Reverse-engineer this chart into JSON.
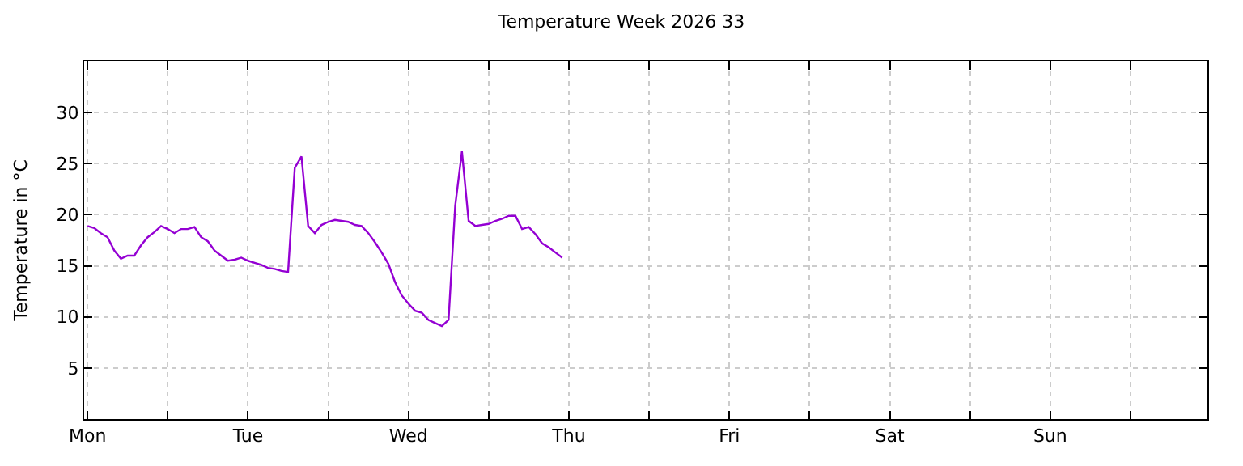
{
  "chart_data": {
    "type": "line",
    "title": "Temperature Week 2026 33",
    "ylabel": "Temperature in °C",
    "categories": [
      "Mon",
      null,
      null,
      null,
      null,
      null,
      null,
      null,
      null,
      null,
      null,
      null,
      null,
      null,
      null,
      null,
      null,
      null,
      null,
      null,
      null,
      null,
      null,
      null,
      "Tue",
      null,
      null,
      null,
      null,
      null,
      null,
      null,
      null,
      null,
      null,
      null,
      null,
      null,
      null,
      null,
      null,
      null,
      null,
      null,
      null,
      null,
      null,
      null,
      "Wed",
      null,
      null,
      null,
      null,
      null,
      null,
      null,
      null,
      null,
      null,
      null,
      null,
      null,
      null,
      null,
      null,
      null,
      null,
      null,
      null,
      null,
      null,
      null,
      "Thu",
      null,
      null,
      null,
      null,
      null,
      null,
      null,
      null,
      null,
      null,
      null,
      null,
      null,
      null,
      null,
      null,
      null,
      null,
      null,
      null,
      null,
      null,
      null,
      "Fri",
      null,
      null,
      null,
      null,
      null,
      null,
      null,
      null,
      null,
      null,
      null,
      null,
      null,
      null,
      null,
      null,
      null,
      null,
      null,
      null,
      null,
      null,
      null,
      "Sat",
      null,
      null,
      null,
      null,
      null,
      null,
      null,
      null,
      null,
      null,
      null,
      null,
      null,
      null,
      null,
      null,
      null,
      null,
      null,
      null,
      null,
      null,
      null,
      "Sun",
      null,
      null,
      null,
      null,
      null,
      null,
      null,
      null,
      null,
      null,
      null,
      null,
      null,
      null,
      null,
      null,
      null,
      null,
      null,
      null,
      null,
      null,
      null
    ],
    "series": [
      {
        "color": "#9400d3",
        "values": [
          18.9,
          18.7,
          18.2,
          17.8,
          16.5,
          15.7,
          16.0,
          16.0,
          17.0,
          17.8,
          18.3,
          18.9,
          18.6,
          18.2,
          18.6,
          18.6,
          18.8,
          17.8,
          17.4,
          16.5,
          16.0,
          15.5,
          15.6,
          15.8,
          15.5,
          15.3,
          15.1,
          14.8,
          14.7,
          14.5,
          14.4,
          24.6,
          25.7,
          18.9,
          18.2,
          19.0,
          19.3,
          19.5,
          19.4,
          19.3,
          19.0,
          18.9,
          18.2,
          17.3,
          16.3,
          15.2,
          13.4,
          12.1,
          11.3,
          10.6,
          10.4,
          9.7,
          9.4,
          9.1,
          9.7,
          20.9,
          26.2,
          19.4,
          18.9,
          19.0,
          19.1,
          19.4,
          19.6,
          19.9,
          19.9,
          18.6,
          18.8,
          18.1,
          17.2,
          16.8,
          16.3,
          15.8,
          null,
          null,
          null,
          null,
          null,
          null,
          null,
          null,
          null,
          null,
          null,
          null,
          null,
          null,
          null,
          null,
          null,
          null,
          null,
          null,
          null,
          null,
          null,
          null,
          null,
          null,
          null,
          null,
          null,
          null,
          null,
          null,
          null,
          null,
          null,
          null,
          null,
          null,
          null,
          null,
          null,
          null,
          null,
          null,
          null,
          null,
          null,
          null,
          null,
          null,
          null,
          null,
          null,
          null,
          null,
          null,
          null,
          null,
          null,
          null,
          null,
          null,
          null,
          null,
          null,
          null,
          null,
          null,
          null,
          null,
          null,
          null,
          null,
          null,
          null,
          null,
          null,
          null,
          null,
          null,
          null,
          null,
          null,
          null,
          null,
          null,
          null,
          null,
          null,
          null,
          null,
          null,
          null,
          null,
          null,
          null
        ]
      }
    ],
    "ylim": [
      0,
      35
    ],
    "yticks": [
      5,
      10,
      15,
      20,
      25,
      30
    ],
    "grid": true,
    "marker": "none",
    "line_style": "solid"
  }
}
